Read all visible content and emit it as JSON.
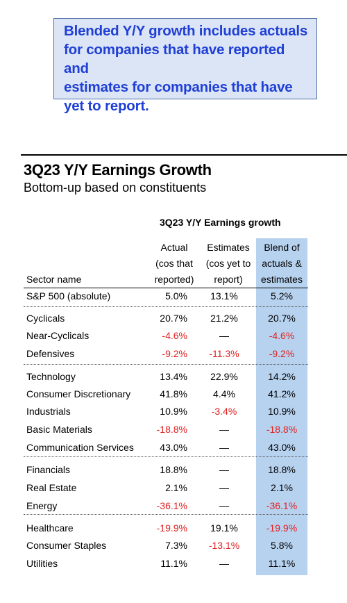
{
  "callout": {
    "lines": [
      "Blended Y/Y growth includes actuals",
      "for companies that have reported and",
      "estimates for companies that have",
      "yet to report."
    ]
  },
  "title": "3Q23 Y/Y Earnings Growth",
  "subtitle": "Bottom-up based on constituents",
  "table": {
    "title": "3Q23 Y/Y Earnings growth",
    "headers": {
      "sector": "Sector name",
      "actual": [
        "Actual",
        "(cos that",
        "reported)"
      ],
      "estimates": [
        "Estimates",
        "(cos yet to",
        "report)"
      ],
      "blend": [
        "Blend of",
        "actuals &",
        "estimates"
      ]
    },
    "rows": [
      {
        "name": "S&P 500 (absolute)",
        "actual": "5.0%",
        "estimates": "13.1%",
        "blend": "5.2%"
      },
      {
        "name": "Cyclicals",
        "actual": "20.7%",
        "estimates": "21.2%",
        "blend": "20.7%"
      },
      {
        "name": "Near-Cyclicals",
        "actual": "-4.6%",
        "estimates": "—",
        "blend": "-4.6%"
      },
      {
        "name": "Defensives",
        "actual": "-9.2%",
        "estimates": "-11.3%",
        "blend": "-9.2%"
      },
      {
        "name": "Technology",
        "actual": "13.4%",
        "estimates": "22.9%",
        "blend": "14.2%"
      },
      {
        "name": "Consumer Discretionary",
        "actual": "41.8%",
        "estimates": "4.4%",
        "blend": "41.2%"
      },
      {
        "name": "Industrials",
        "actual": "10.9%",
        "estimates": "-3.4%",
        "blend": "10.9%"
      },
      {
        "name": "Basic Materials",
        "actual": "-18.8%",
        "estimates": "—",
        "blend": "-18.8%"
      },
      {
        "name": "Communication Services",
        "actual": "43.0%",
        "estimates": "—",
        "blend": "43.0%"
      },
      {
        "name": "Financials",
        "actual": "18.8%",
        "estimates": "—",
        "blend": "18.8%"
      },
      {
        "name": "Real Estate",
        "actual": "2.1%",
        "estimates": "—",
        "blend": "2.1%"
      },
      {
        "name": "Energy",
        "actual": "-36.1%",
        "estimates": "—",
        "blend": "-36.1%"
      },
      {
        "name": "Healthcare",
        "actual": "-19.9%",
        "estimates": "19.1%",
        "blend": "-19.9%"
      },
      {
        "name": "Consumer Staples",
        "actual": "7.3%",
        "estimates": "-13.1%",
        "blend": "5.8%"
      },
      {
        "name": "Utilities",
        "actual": "11.1%",
        "estimates": "—",
        "blend": "11.1%"
      }
    ]
  },
  "colors": {
    "callout_text": "#1f3fd6",
    "callout_bg": "#dbe5f5",
    "blend_column_bg": "#b7d2ef",
    "negative": "#e02020"
  }
}
